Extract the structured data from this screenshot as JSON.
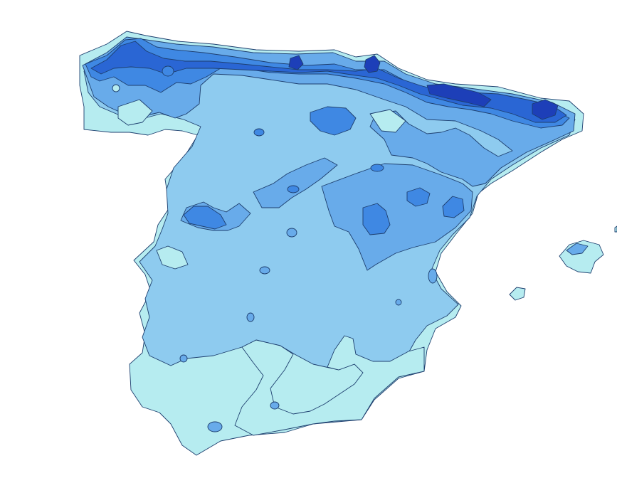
{
  "map": {
    "region": "",
    "colors": {
      "zone1": "#b6ecf0",
      "zone2": "#8ecbef",
      "zone3": "#68abea",
      "zone4": "#3f88e3",
      "zone5": "#2a66d4",
      "zone6": "#1d3fb8",
      "outline": "#1d3e6e",
      "background": "#ffffff"
    },
    "zone_order": [
      "zone1",
      "zone2",
      "zone3",
      "zone4",
      "zone5",
      "zone6"
    ]
  }
}
